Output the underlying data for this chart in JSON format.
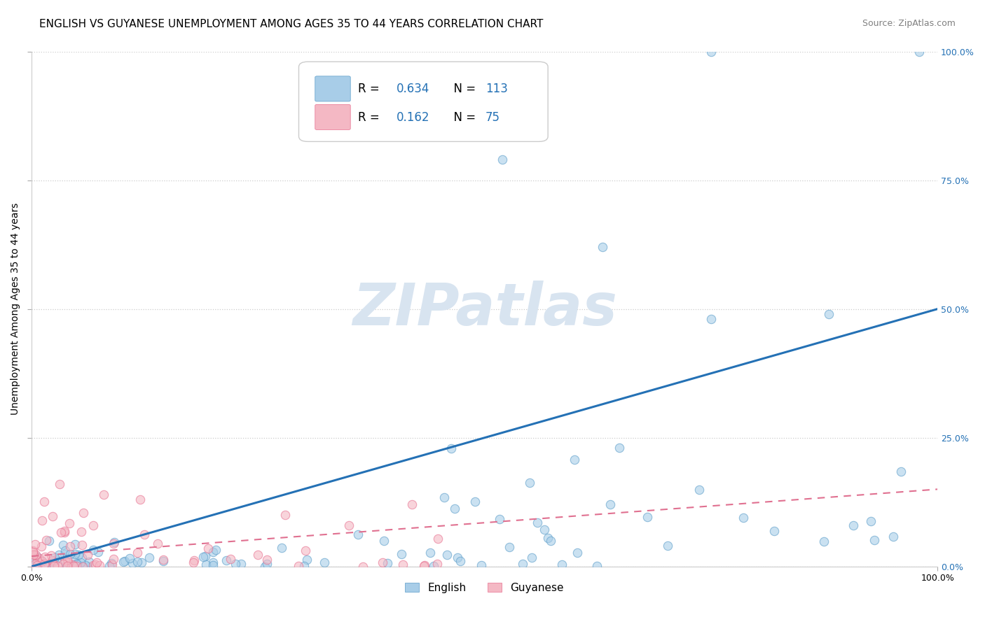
{
  "title": "ENGLISH VS GUYANESE UNEMPLOYMENT AMONG AGES 35 TO 44 YEARS CORRELATION CHART",
  "source": "Source: ZipAtlas.com",
  "ylabel": "Unemployment Among Ages 35 to 44 years",
  "xlim": [
    0,
    100
  ],
  "ylim": [
    0,
    100
  ],
  "english_R": 0.634,
  "english_N": 113,
  "guyanese_R": 0.162,
  "guyanese_N": 75,
  "english_color": "#a8cde8",
  "english_edge_color": "#5b9dc9",
  "guyanese_color": "#f4b8c4",
  "guyanese_edge_color": "#e87090",
  "english_line_color": "#2471b5",
  "guyanese_line_color": "#e07090",
  "text_blue_color": "#2471b5",
  "watermark": "ZIPatlas",
  "watermark_color": "#d8e4f0",
  "title_fontsize": 11,
  "axis_label_fontsize": 10,
  "tick_fontsize": 9,
  "right_tick_color": "#2471b5",
  "english_trend": [
    0.0,
    50.0
  ],
  "guyanese_trend_start": 2.0,
  "guyanese_trend_end": 15.0
}
